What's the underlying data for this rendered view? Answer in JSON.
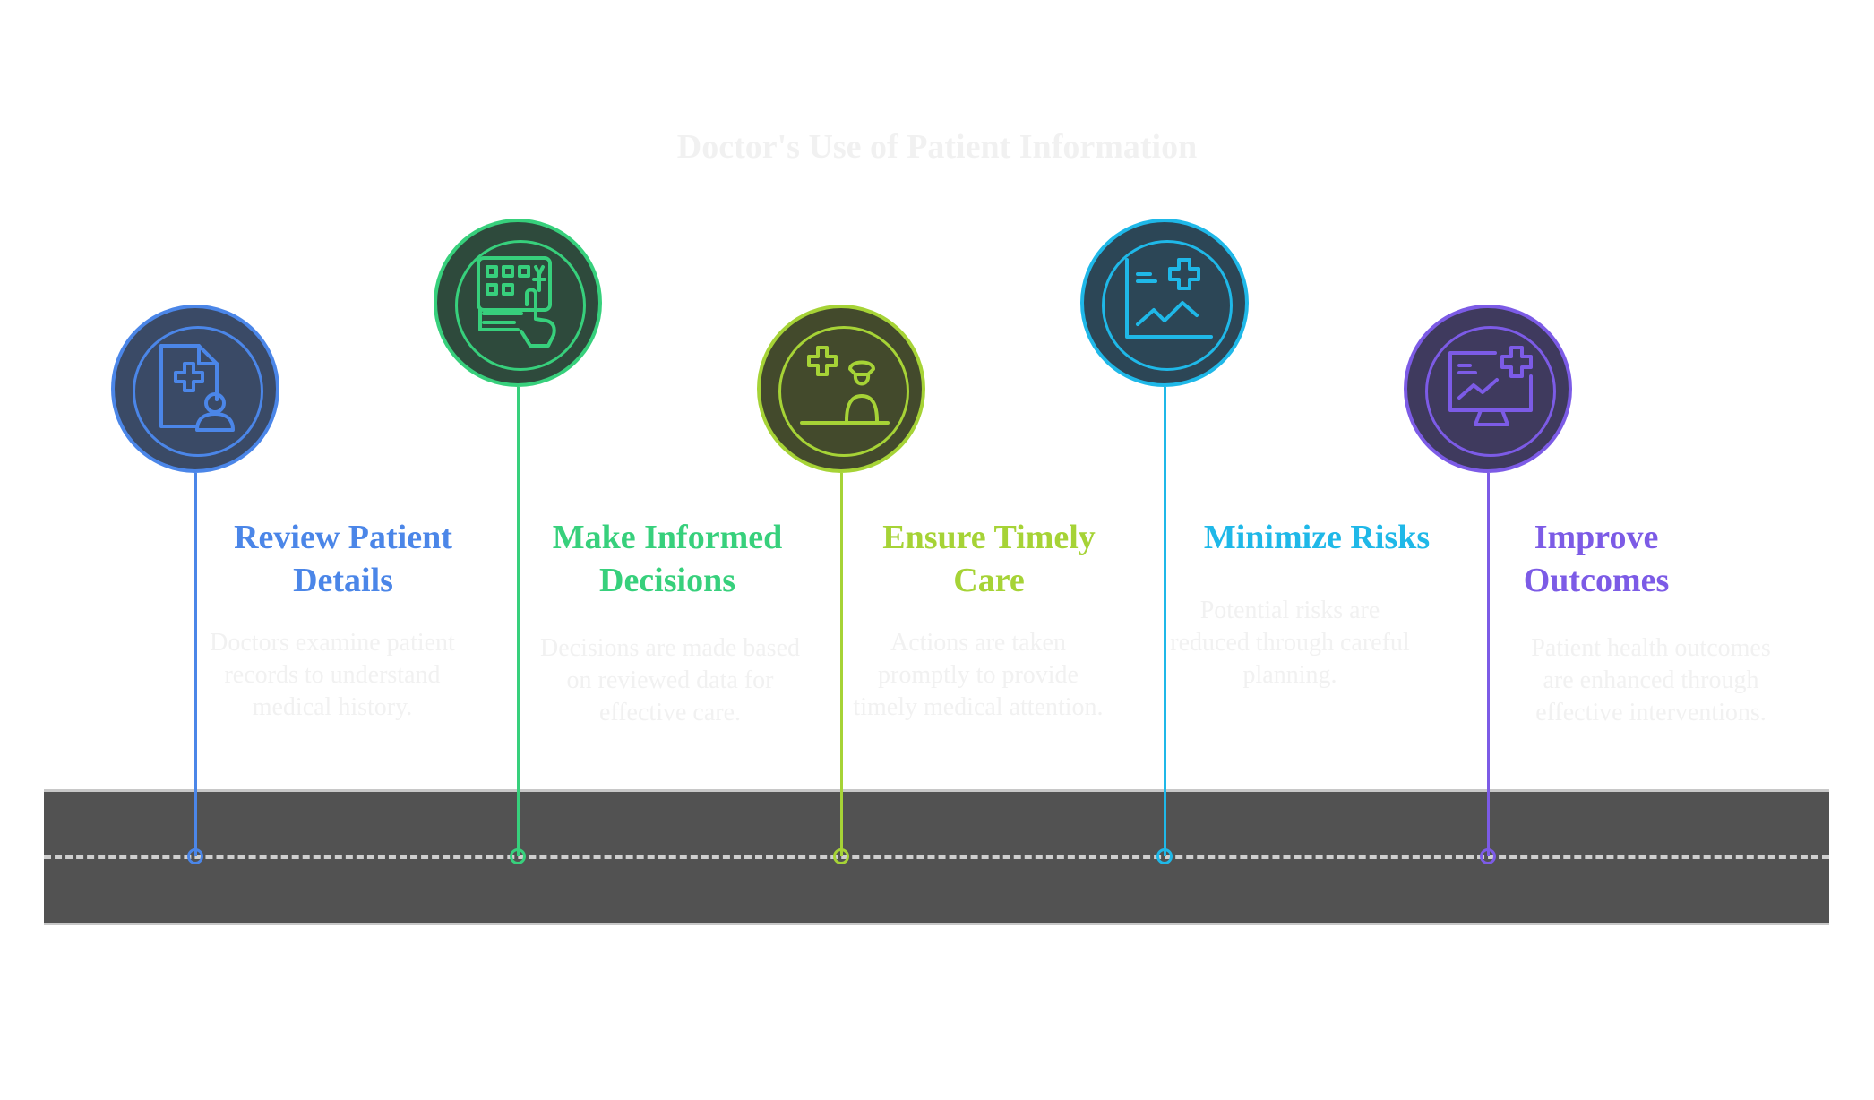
{
  "title": "Doctor's Use of Patient Information",
  "steps": [
    {
      "title": "Review Patient Details",
      "description": "Doctors examine patient records to understand medical history.",
      "icon": "patient-file-icon",
      "color": "#4b86e8",
      "fill": "#3a4a66"
    },
    {
      "title": "Make Informed Decisions",
      "description": "Decisions are made based on reviewed data for effective care.",
      "icon": "keypad-hand-icon",
      "color": "#37d07c",
      "fill": "#2e4a3c"
    },
    {
      "title": "Ensure Timely Care",
      "description": "Actions are taken promptly to provide timely medical attention.",
      "icon": "nurse-icon",
      "color": "#a6d336",
      "fill": "#434a2c"
    },
    {
      "title": "Minimize Risks",
      "description": "Potential risks are reduced through careful planning.",
      "icon": "risk-chart-icon",
      "color": "#1fb8e8",
      "fill": "#2c4656"
    },
    {
      "title": "Improve Outcomes",
      "description": "Patient health outcomes are enhanced through effective interventions.",
      "icon": "health-monitor-icon",
      "color": "#7c5be6",
      "fill": "#3f3a5e"
    }
  ]
}
